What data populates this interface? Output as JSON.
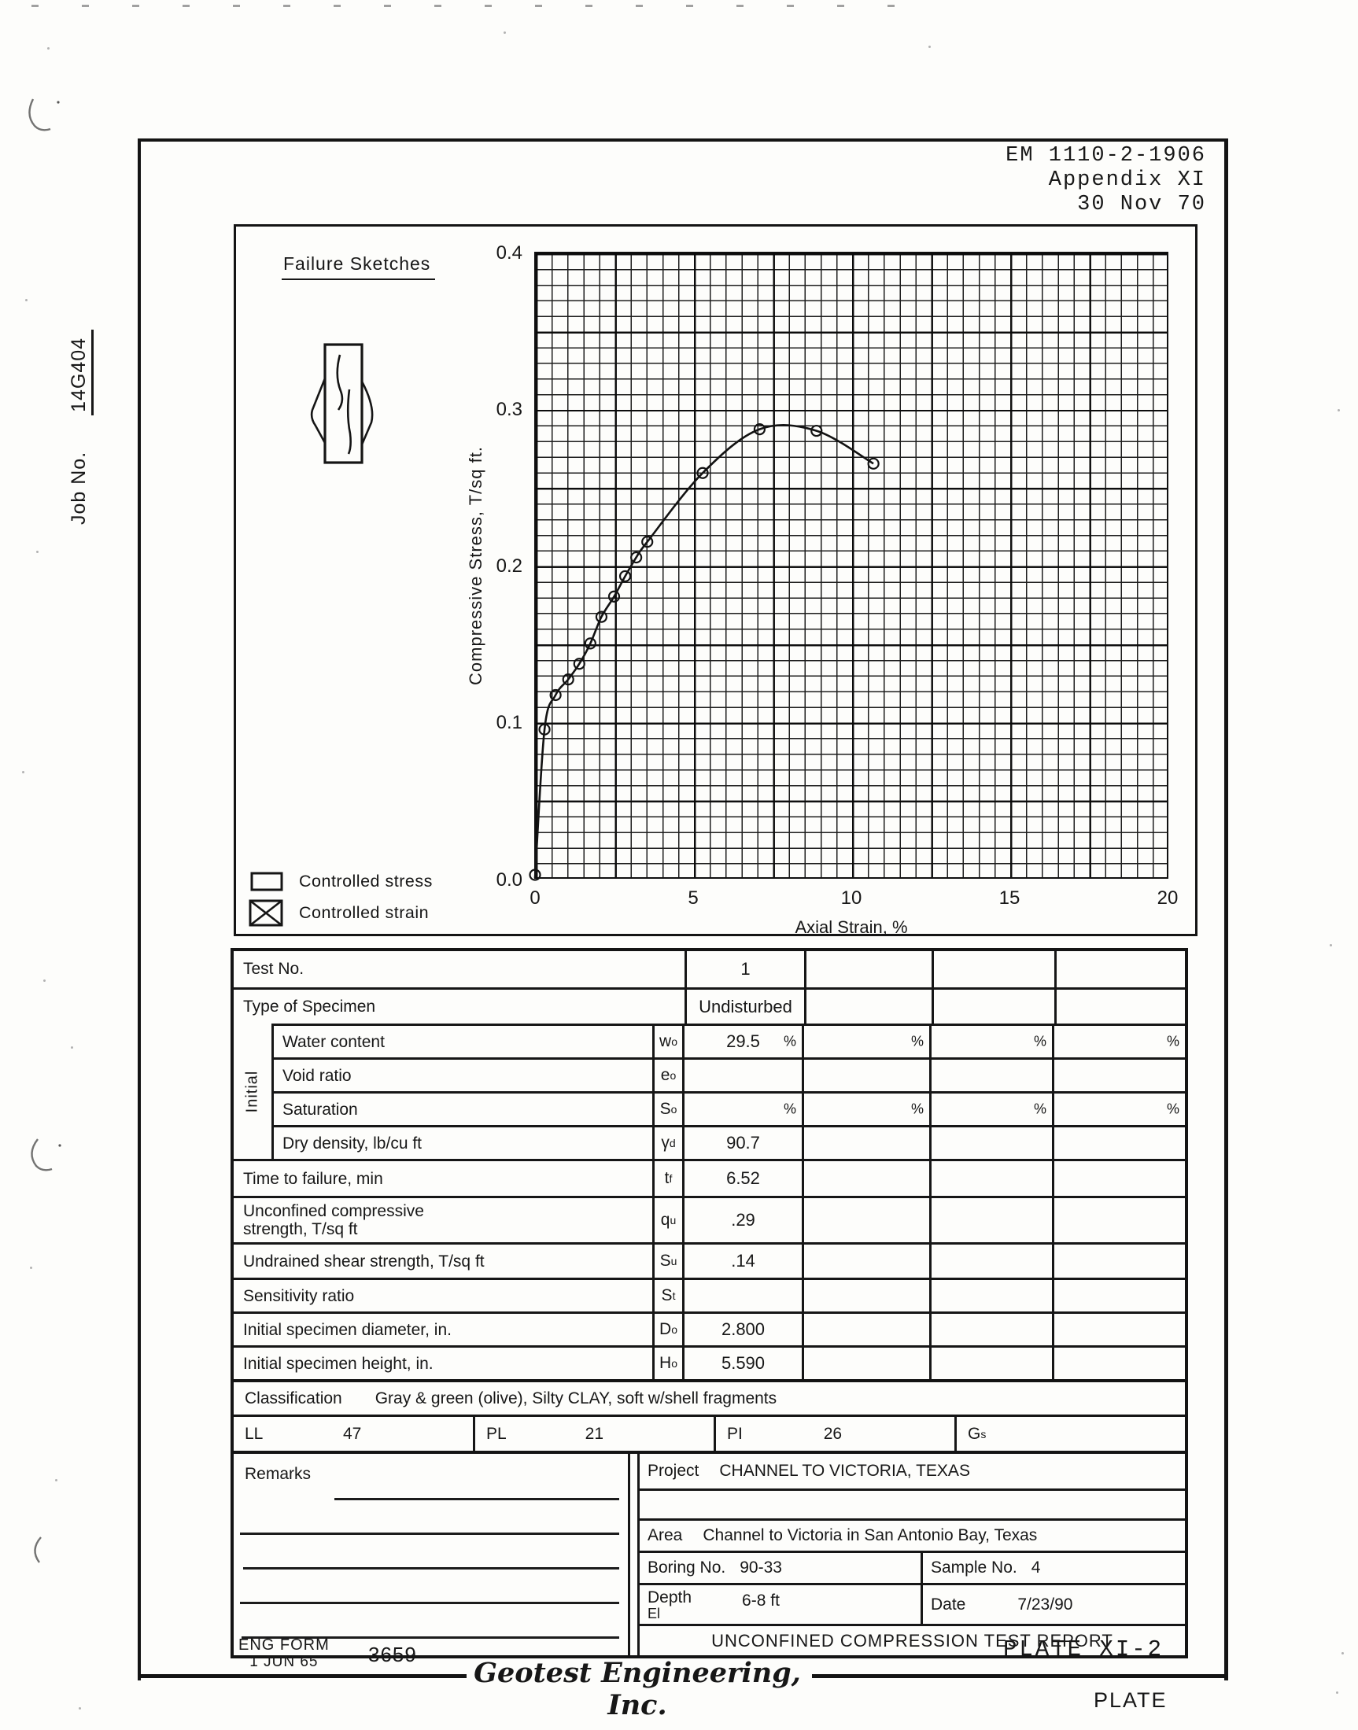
{
  "header": {
    "line1": "EM 1110-2-1906",
    "line2": "Appendix XI",
    "line3": "30 Nov 70"
  },
  "margin": {
    "job_no_label": "Job No.",
    "job_no_value": "14G404"
  },
  "chart": {
    "failure_sketches_title": "Failure Sketches",
    "ylabel": "Compressive Stress, T/sq ft.",
    "xlabel": "Axial Strain, %",
    "yticks": [
      "0.4",
      "0.3",
      "0.2",
      "0.1"
    ],
    "origin_label": "0.0",
    "xticks": [
      "0",
      "5",
      "10",
      "15",
      "20"
    ],
    "legend": [
      {
        "label": "Controlled stress",
        "checked": false
      },
      {
        "label": "Controlled strain",
        "checked": true
      }
    ]
  },
  "chart_data": {
    "type": "line",
    "title": "",
    "xlabel": "Axial Strain, %",
    "ylabel": "Compressive Stress, T/sq ft.",
    "xlim": [
      0,
      20
    ],
    "ylim": [
      0,
      0.4
    ],
    "xticks": [
      0,
      5,
      10,
      15,
      20
    ],
    "yticks": [
      0.0,
      0.1,
      0.2,
      0.3,
      0.4
    ],
    "grid": "fine grid 0.5% by 0.01 with heavier line every 5 cells",
    "legend_position": "bottom-left",
    "marker": "open-circle",
    "series": [
      {
        "name": "Test 1",
        "points": [
          [
            0,
            0
          ],
          [
            0.3,
            0.095
          ],
          [
            0.65,
            0.117
          ],
          [
            1.05,
            0.127
          ],
          [
            1.4,
            0.137
          ],
          [
            1.75,
            0.15
          ],
          [
            2.1,
            0.167
          ],
          [
            2.5,
            0.18
          ],
          [
            2.85,
            0.193
          ],
          [
            3.2,
            0.205
          ],
          [
            3.55,
            0.215
          ],
          [
            5.3,
            0.259
          ],
          [
            7.1,
            0.287
          ],
          [
            8.9,
            0.286
          ],
          [
            10.7,
            0.265
          ]
        ]
      }
    ]
  },
  "table": {
    "test_no": {
      "label": "Test No.",
      "value": "1"
    },
    "type_of_specimen": {
      "label": "Type of Specimen",
      "value": "Undisturbed"
    },
    "initial_group_label": "Initial",
    "rows": [
      {
        "label": "Water content",
        "sym": "w",
        "sub": "o",
        "group": true,
        "v1": "29.5",
        "pct": [
          true,
          true,
          true,
          true
        ]
      },
      {
        "label": "Void ratio",
        "sym": "e",
        "sub": "o",
        "group": true,
        "v1": ""
      },
      {
        "label": "Saturation",
        "sym": "S",
        "sub": "o",
        "group": true,
        "v1": "",
        "pct": [
          true,
          true,
          true,
          true
        ]
      },
      {
        "label": "Dry density, lb/cu ft",
        "sym": "γ",
        "sub": "d",
        "group": true,
        "v1": "90.7"
      },
      {
        "label": "Time to failure, min",
        "sym": "t",
        "sub": "f",
        "v1": "6.52"
      },
      {
        "label": "Unconfined compressive",
        "label2": "strength, T/sq ft",
        "sym": "q",
        "sub": "u",
        "v1": ".29",
        "tall": true
      },
      {
        "label": "Undrained shear strength, T/sq ft",
        "sym": "S",
        "sub": "u",
        "v1": ".14"
      },
      {
        "label": "Sensitivity ratio",
        "sym": "S",
        "sub": "t",
        "v1": ""
      },
      {
        "label": "Initial specimen diameter, in.",
        "sym": "D",
        "sub": "o",
        "v1": "2.800"
      },
      {
        "label": "Initial specimen height, in.",
        "sym": "H",
        "sub": "o",
        "v1": "5.590"
      }
    ],
    "classification": {
      "label": "Classification",
      "value": "Gray & green (olive), Silty CLAY, soft w/shell fragments"
    },
    "atterberg": [
      {
        "label": "LL",
        "value": "47",
        "sub": ""
      },
      {
        "label": "PL",
        "value": "21",
        "sub": ""
      },
      {
        "label": "PI",
        "value": "26",
        "sub": ""
      },
      {
        "label": "G",
        "value": "",
        "sub": "s"
      }
    ]
  },
  "remarks": {
    "label": "Remarks"
  },
  "project": {
    "label": "Project",
    "value": "CHANNEL TO VICTORIA, TEXAS"
  },
  "area": {
    "label": "Area",
    "value": "Channel to Victoria in San Antonio Bay, Texas"
  },
  "boring": {
    "label": "Boring No.",
    "value": "90-33"
  },
  "sample": {
    "label": "Sample No.",
    "value": "4"
  },
  "depth": {
    "label": "Depth",
    "label2": "El",
    "value": "6-8 ft"
  },
  "date": {
    "label": "Date",
    "value": "7/23/90"
  },
  "report_title": "UNCONFINED COMPRESSION TEST REPORT",
  "footer": {
    "eng_form_line1": "ENG FORM",
    "eng_form_line2": "1 JUN 65",
    "form_number": "3659",
    "plate": "PLATE XI-2",
    "company": "Geotest Engineering, Inc.",
    "plate_word": "PLATE"
  }
}
